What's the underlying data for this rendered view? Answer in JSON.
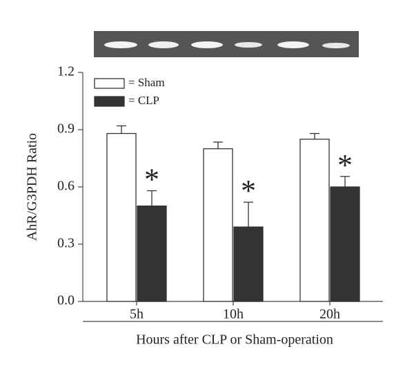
{
  "chart_data": {
    "type": "bar",
    "y_label": "AhR/G3PDH Ratio",
    "x_label": "Hours after CLP or Sham-operation",
    "categories": [
      "5h",
      "10h",
      "20h"
    ],
    "series": [
      {
        "name": "= Sham",
        "color": "#ffffff",
        "values": [
          0.88,
          0.8,
          0.85
        ],
        "errors": [
          0.04,
          0.035,
          0.03
        ]
      },
      {
        "name": "= CLP",
        "color": "#333333",
        "values": [
          0.5,
          0.39,
          0.6
        ],
        "errors": [
          0.08,
          0.13,
          0.055
        ]
      }
    ],
    "annotations": [
      "*",
      "*",
      "*"
    ],
    "ylim": [
      0,
      1.2
    ],
    "yticks": [
      {
        "value": 0,
        "label": "0.0"
      },
      0.3,
      0.6,
      0.9,
      1.2
    ],
    "legend": "top-left"
  }
}
